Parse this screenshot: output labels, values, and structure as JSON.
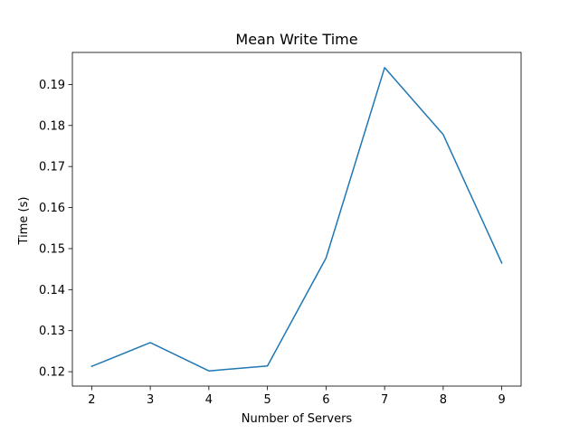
{
  "chart_data": {
    "type": "line",
    "title": "Mean Write Time",
    "xlabel": "Number of Servers",
    "ylabel": "Time (s)",
    "x": [
      2,
      3,
      4,
      5,
      6,
      7,
      8,
      9
    ],
    "series": [
      {
        "values": [
          0.1213,
          0.1271,
          0.1202,
          0.1214,
          0.1477,
          0.1941,
          0.1778,
          0.1465
        ],
        "color": "#1f77b4"
      }
    ],
    "xlim": [
      1.67,
      9.33
    ],
    "ylim": [
      0.1165,
      0.1978
    ],
    "xticks": [
      2,
      3,
      4,
      5,
      6,
      7,
      8,
      9
    ],
    "yticks": [
      0.12,
      0.13,
      0.14,
      0.15,
      0.16,
      0.17,
      0.18,
      0.19
    ],
    "ytick_labels": [
      "0.12",
      "0.13",
      "0.14",
      "0.15",
      "0.16",
      "0.17",
      "0.18",
      "0.19"
    ],
    "grid": false,
    "legend": "none"
  }
}
